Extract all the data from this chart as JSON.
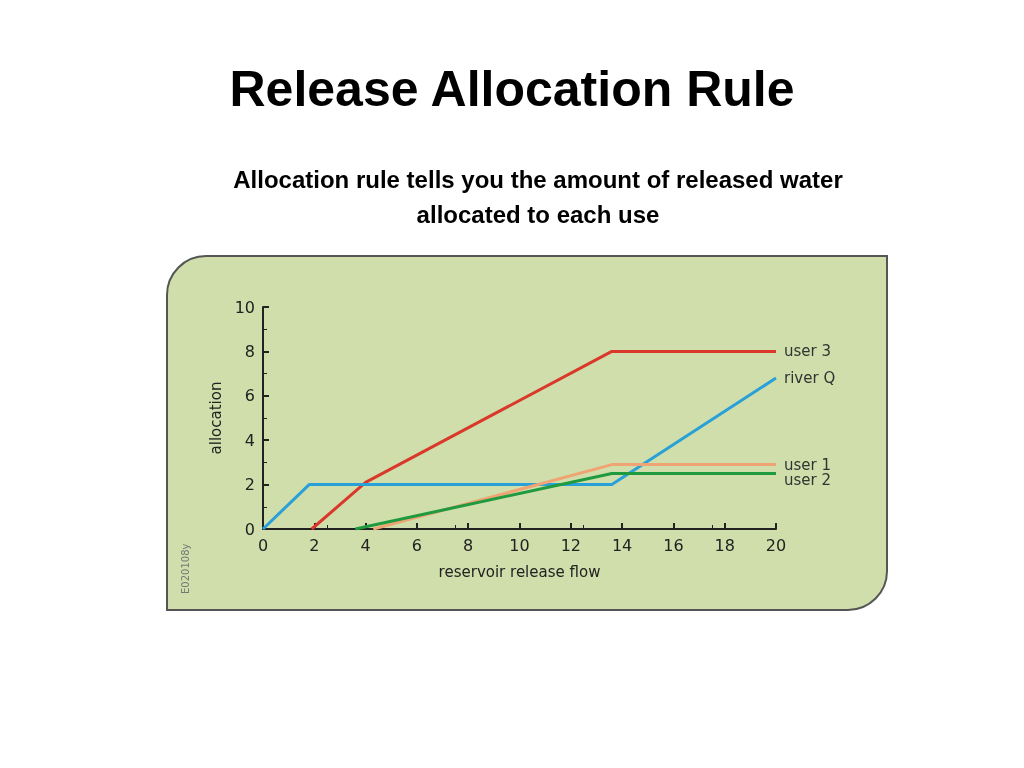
{
  "chart_data": {
    "type": "line",
    "title": "Release Allocation Rule",
    "subtitle": "Allocation rule tells you the amount of released water allocated to each use",
    "xlabel": "reservoir release flow",
    "ylabel": "allocation",
    "xlim": [
      0,
      20
    ],
    "xticks": [
      0,
      2,
      4,
      6,
      8,
      10,
      12,
      14,
      16,
      18,
      20
    ],
    "ylim": [
      0,
      10
    ],
    "yticks": [
      0,
      2,
      4,
      6,
      8,
      10
    ],
    "grid": false,
    "legend": false,
    "marker": "none",
    "line_style": "solid",
    "annotations": [
      "E020108y"
    ],
    "series": [
      {
        "name": "user 3",
        "color": "#d9382b",
        "x": [
          1.9,
          4,
          13.6,
          20
        ],
        "values": [
          0,
          2.1,
          8,
          8
        ]
      },
      {
        "name": "river Q",
        "color": "#2aa0d8",
        "x": [
          0,
          1.8,
          13.6,
          20
        ],
        "values": [
          0,
          2,
          2,
          6.8
        ]
      },
      {
        "name": "user 1",
        "color": "#f0a373",
        "x": [
          4.3,
          13.6,
          20
        ],
        "values": [
          0,
          2.9,
          2.9
        ]
      },
      {
        "name": "user 2",
        "color": "#1f9a3f",
        "x": [
          3.6,
          13.6,
          20
        ],
        "values": [
          0,
          2.5,
          2.5
        ]
      }
    ]
  }
}
